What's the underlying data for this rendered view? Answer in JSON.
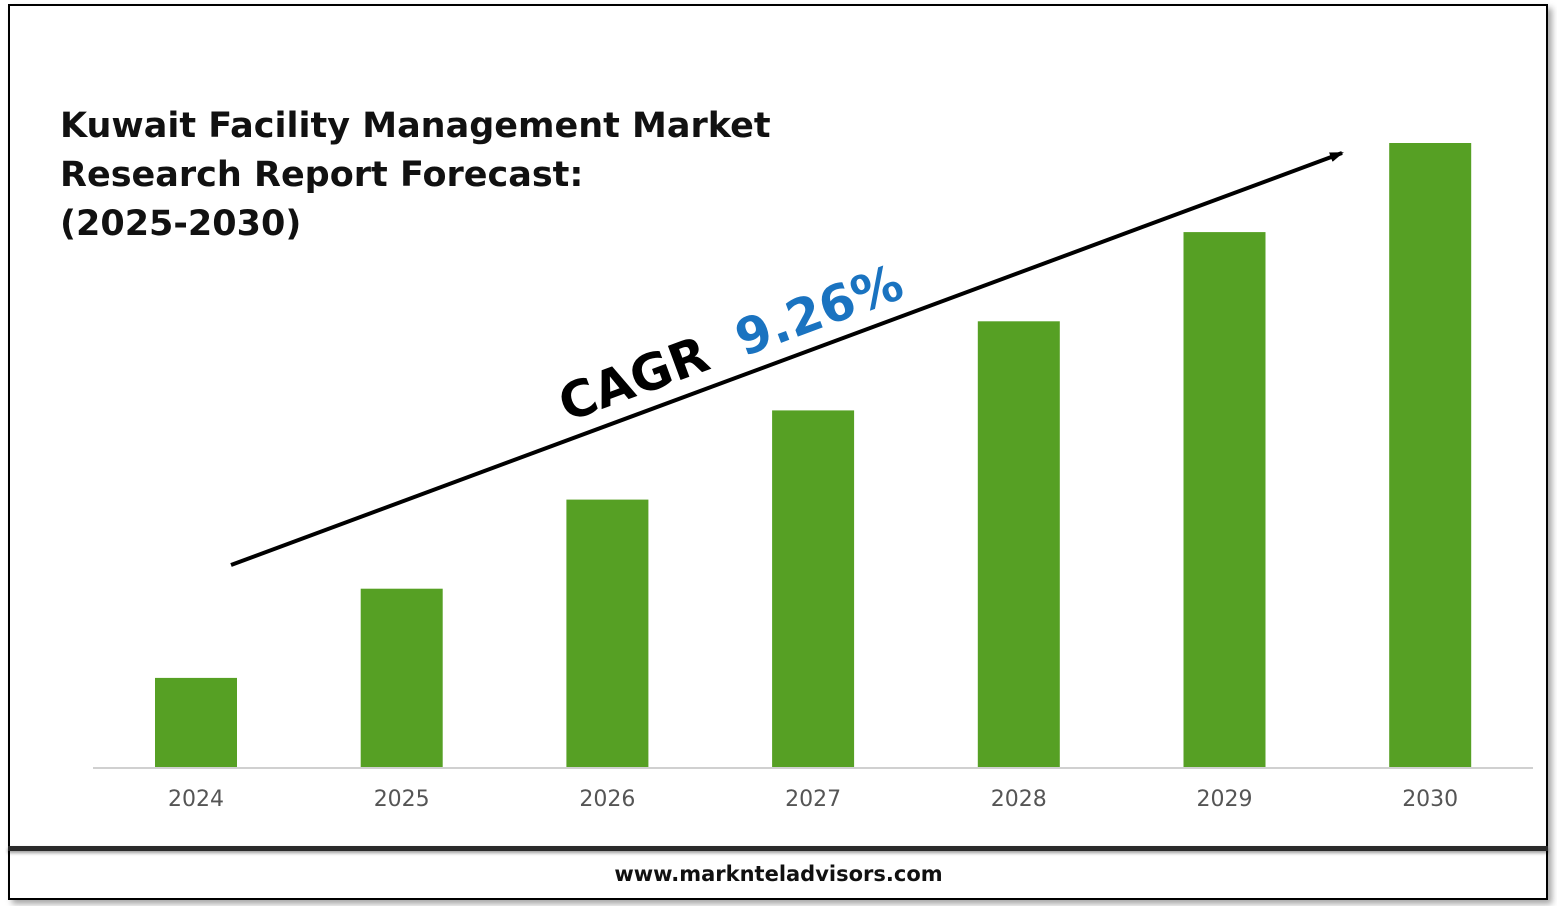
{
  "chart_data": {
    "type": "bar",
    "title_lines": [
      "Kuwait Facility Management Market",
      "Research Report Forecast:",
      "(2025-2030)"
    ],
    "categories": [
      "2024",
      "2025",
      "2026",
      "2027",
      "2028",
      "2029",
      "2030"
    ],
    "values": [
      1.0,
      2.0,
      3.0,
      4.0,
      5.0,
      6.0,
      7.0
    ],
    "ylim": [
      0,
      7.0
    ],
    "grid": false,
    "legend": "none",
    "annotation": {
      "cagr_label": "CAGR",
      "cagr_value": "9.26%"
    },
    "colors": {
      "bar": "#56a024",
      "cagr_value": "#1a73c0",
      "axis": "#d0d0d0",
      "tick_label": "#555555"
    }
  },
  "footer": {
    "website": "www.marknteladvisors.com"
  }
}
